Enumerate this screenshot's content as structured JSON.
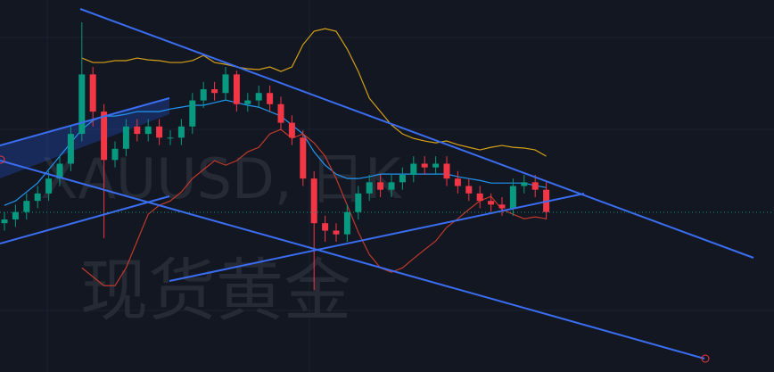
{
  "chart_data": {
    "type": "candlestick",
    "title": "XAUUSD, 日K",
    "subtitle": "现货黄金",
    "ylim": [
      0,
      100
    ],
    "up_color": "#089981",
    "down_color": "#f23645",
    "open": [
      40,
      41,
      43,
      46,
      48,
      52,
      56,
      64,
      80,
      70,
      57,
      60,
      66,
      64,
      66,
      63,
      63,
      66,
      73,
      76,
      75,
      80,
      72,
      73,
      75,
      72,
      67,
      63,
      52,
      40,
      38,
      37,
      43,
      48,
      51,
      49,
      51,
      53,
      56,
      55,
      56,
      52,
      50,
      48,
      46,
      45,
      44,
      50,
      51,
      49
    ],
    "high": [
      43,
      45,
      48,
      50,
      54,
      58,
      66,
      94,
      82,
      72,
      62,
      68,
      68,
      68,
      68,
      65,
      68,
      75,
      78,
      78,
      82,
      81,
      75,
      77,
      77,
      74,
      69,
      65,
      54,
      42,
      40,
      45,
      50,
      53,
      53,
      53,
      55,
      58,
      58,
      58,
      58,
      54,
      52,
      50,
      48,
      47,
      52,
      53,
      53,
      51
    ],
    "low": [
      38,
      39,
      41,
      44,
      46,
      50,
      54,
      62,
      66,
      36,
      55,
      58,
      62,
      62,
      61,
      61,
      61,
      64,
      71,
      73,
      73,
      70,
      70,
      71,
      70,
      65,
      61,
      50,
      22,
      35,
      35,
      35,
      41,
      46,
      47,
      47,
      49,
      51,
      53,
      53,
      50,
      48,
      46,
      44,
      43,
      42,
      42,
      48,
      47,
      41
    ],
    "close": [
      41,
      43,
      46,
      48,
      52,
      56,
      64,
      80,
      70,
      57,
      60,
      66,
      64,
      66,
      63,
      63,
      66,
      73,
      76,
      75,
      80,
      72,
      73,
      75,
      72,
      67,
      63,
      52,
      40,
      38,
      37,
      43,
      48,
      51,
      49,
      51,
      53,
      56,
      55,
      56,
      52,
      50,
      48,
      46,
      45,
      44,
      50,
      51,
      49,
      43
    ],
    "series": [
      {
        "color": "#d4a017",
        "values": [
          null,
          null,
          null,
          null,
          null,
          null,
          null,
          84.4,
          83.2,
          83.2,
          83.7,
          83.7,
          84.4,
          83.9,
          83.7,
          83.2,
          83.2,
          83.7,
          85.1,
          83.2,
          82.7,
          82,
          81.5,
          81.3,
          82,
          80.8,
          82,
          88,
          91.6,
          92.3,
          91.6,
          86.8,
          80.8,
          73.6,
          70,
          66.4,
          64,
          62.8,
          62.1,
          61.6,
          62.1,
          61.1,
          60.4,
          59.7,
          60.4,
          60.9,
          60.4,
          60.2,
          59.7,
          58
        ]
      },
      {
        "color": "#2196f3",
        "values": [
          44.8,
          46,
          48.4,
          50.8,
          54.4,
          58,
          61.6,
          65.2,
          67.6,
          68.8,
          68.8,
          69.3,
          70,
          70,
          70,
          70.7,
          71.2,
          71.7,
          71.7,
          72.4,
          73.1,
          72.4,
          71.7,
          71.2,
          70,
          68.8,
          66.4,
          64,
          59.2,
          55.6,
          53.2,
          52,
          52,
          52.5,
          53.2,
          53.2,
          53.2,
          53.2,
          53.2,
          53.2,
          53.2,
          52.5,
          52,
          51.5,
          50.8,
          50.8,
          50.8,
          50.8,
          50.1,
          49.6
        ]
      },
      {
        "color": "#c0392b",
        "values": [
          null,
          null,
          null,
          null,
          null,
          null,
          null,
          28,
          25.6,
          23.2,
          23.2,
          28,
          35.2,
          42.4,
          44.8,
          46,
          48.4,
          52,
          54.4,
          56.8,
          55.6,
          56.8,
          59.2,
          60.4,
          64,
          65.2,
          62.8,
          64,
          61.6,
          58,
          52,
          44.8,
          37.6,
          31.6,
          28,
          26.8,
          28,
          30.5,
          32.9,
          35.2,
          38.9,
          41.2,
          43.7,
          46,
          47.2,
          43.7,
          42.4,
          41.2,
          41.7,
          41.2
        ]
      }
    ]
  }
}
